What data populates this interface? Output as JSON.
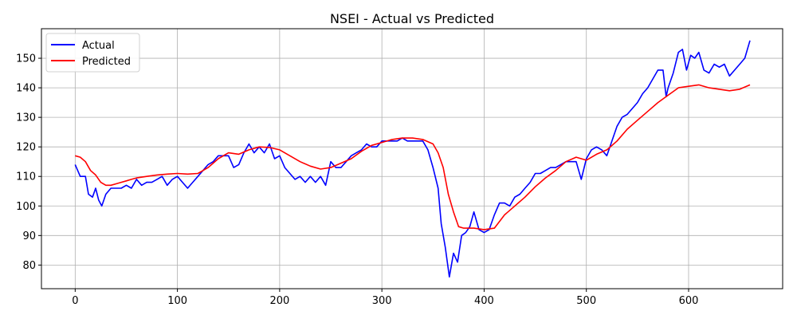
{
  "chart_data": {
    "type": "line",
    "title": "NSEI - Actual vs Predicted",
    "xlabel": "",
    "ylabel": "",
    "xlim": [
      -33,
      692
    ],
    "ylim": [
      72,
      160
    ],
    "x_ticks": [
      0,
      100,
      200,
      300,
      400,
      500,
      600
    ],
    "y_ticks": [
      80,
      90,
      100,
      110,
      120,
      130,
      140,
      150
    ],
    "grid": true,
    "legend_position": "top-left",
    "series": [
      {
        "name": "Actual",
        "color": "#0000ff",
        "points": [
          [
            0,
            114
          ],
          [
            5,
            110
          ],
          [
            10,
            110
          ],
          [
            13,
            104
          ],
          [
            17,
            103
          ],
          [
            20,
            106
          ],
          [
            23,
            102
          ],
          [
            26,
            100
          ],
          [
            30,
            104
          ],
          [
            35,
            106
          ],
          [
            40,
            106
          ],
          [
            45,
            106
          ],
          [
            50,
            107
          ],
          [
            55,
            106
          ],
          [
            60,
            109
          ],
          [
            65,
            107
          ],
          [
            70,
            108
          ],
          [
            75,
            108
          ],
          [
            80,
            109
          ],
          [
            85,
            110
          ],
          [
            90,
            107
          ],
          [
            95,
            109
          ],
          [
            100,
            110
          ],
          [
            105,
            108
          ],
          [
            110,
            106
          ],
          [
            115,
            108
          ],
          [
            120,
            110
          ],
          [
            125,
            112
          ],
          [
            130,
            114
          ],
          [
            135,
            115
          ],
          [
            140,
            117
          ],
          [
            145,
            117
          ],
          [
            150,
            117
          ],
          [
            155,
            113
          ],
          [
            160,
            114
          ],
          [
            165,
            118
          ],
          [
            170,
            121
          ],
          [
            175,
            118
          ],
          [
            180,
            120
          ],
          [
            185,
            118
          ],
          [
            190,
            121
          ],
          [
            195,
            116
          ],
          [
            200,
            117
          ],
          [
            205,
            113
          ],
          [
            210,
            111
          ],
          [
            215,
            109
          ],
          [
            220,
            110
          ],
          [
            225,
            108
          ],
          [
            230,
            110
          ],
          [
            235,
            108
          ],
          [
            240,
            110
          ],
          [
            245,
            107
          ],
          [
            250,
            115
          ],
          [
            255,
            113
          ],
          [
            260,
            113
          ],
          [
            265,
            115
          ],
          [
            270,
            117
          ],
          [
            275,
            118
          ],
          [
            280,
            119
          ],
          [
            285,
            121
          ],
          [
            290,
            120
          ],
          [
            295,
            120
          ],
          [
            300,
            122
          ],
          [
            305,
            122
          ],
          [
            310,
            122
          ],
          [
            315,
            122
          ],
          [
            320,
            123
          ],
          [
            325,
            122
          ],
          [
            330,
            122
          ],
          [
            335,
            122
          ],
          [
            340,
            122
          ],
          [
            345,
            119
          ],
          [
            350,
            113
          ],
          [
            355,
            106
          ],
          [
            358,
            94
          ],
          [
            362,
            86
          ],
          [
            366,
            76
          ],
          [
            370,
            84
          ],
          [
            374,
            81
          ],
          [
            378,
            90
          ],
          [
            382,
            91
          ],
          [
            386,
            93
          ],
          [
            390,
            98
          ],
          [
            395,
            92
          ],
          [
            400,
            91
          ],
          [
            405,
            92
          ],
          [
            410,
            97
          ],
          [
            415,
            101
          ],
          [
            420,
            101
          ],
          [
            425,
            100
          ],
          [
            430,
            103
          ],
          [
            435,
            104
          ],
          [
            440,
            106
          ],
          [
            445,
            108
          ],
          [
            450,
            111
          ],
          [
            455,
            111
          ],
          [
            460,
            112
          ],
          [
            465,
            113
          ],
          [
            470,
            113
          ],
          [
            475,
            114
          ],
          [
            480,
            115
          ],
          [
            485,
            115
          ],
          [
            490,
            115
          ],
          [
            495,
            109
          ],
          [
            500,
            116
          ],
          [
            505,
            119
          ],
          [
            510,
            120
          ],
          [
            515,
            119
          ],
          [
            520,
            117
          ],
          [
            525,
            122
          ],
          [
            530,
            127
          ],
          [
            535,
            130
          ],
          [
            540,
            131
          ],
          [
            545,
            133
          ],
          [
            550,
            135
          ],
          [
            555,
            138
          ],
          [
            560,
            140
          ],
          [
            565,
            143
          ],
          [
            570,
            146
          ],
          [
            575,
            146
          ],
          [
            578,
            137
          ],
          [
            580,
            140
          ],
          [
            585,
            145
          ],
          [
            590,
            152
          ],
          [
            594,
            153
          ],
          [
            598,
            146
          ],
          [
            602,
            151
          ],
          [
            606,
            150
          ],
          [
            610,
            152
          ],
          [
            615,
            146
          ],
          [
            620,
            145
          ],
          [
            625,
            148
          ],
          [
            630,
            147
          ],
          [
            635,
            148
          ],
          [
            640,
            144
          ],
          [
            645,
            146
          ],
          [
            650,
            148
          ],
          [
            655,
            150
          ],
          [
            660,
            156
          ]
        ]
      },
      {
        "name": "Predicted",
        "color": "#ff0000",
        "points": [
          [
            0,
            117
          ],
          [
            5,
            116.5
          ],
          [
            10,
            115
          ],
          [
            15,
            112
          ],
          [
            20,
            110.5
          ],
          [
            25,
            108
          ],
          [
            30,
            107
          ],
          [
            35,
            107
          ],
          [
            40,
            107.5
          ],
          [
            45,
            108
          ],
          [
            50,
            108.5
          ],
          [
            55,
            109
          ],
          [
            60,
            109.5
          ],
          [
            70,
            110
          ],
          [
            80,
            110.5
          ],
          [
            90,
            110.8
          ],
          [
            100,
            111
          ],
          [
            110,
            110.8
          ],
          [
            120,
            111
          ],
          [
            130,
            113
          ],
          [
            140,
            116
          ],
          [
            150,
            118
          ],
          [
            160,
            117.5
          ],
          [
            170,
            119
          ],
          [
            180,
            120
          ],
          [
            190,
            119.8
          ],
          [
            200,
            119
          ],
          [
            210,
            117
          ],
          [
            220,
            115
          ],
          [
            230,
            113.5
          ],
          [
            240,
            112.5
          ],
          [
            250,
            113
          ],
          [
            260,
            114.5
          ],
          [
            270,
            116
          ],
          [
            280,
            118.5
          ],
          [
            290,
            120.5
          ],
          [
            300,
            121.5
          ],
          [
            310,
            122.5
          ],
          [
            320,
            123
          ],
          [
            330,
            123
          ],
          [
            340,
            122.5
          ],
          [
            350,
            121
          ],
          [
            355,
            118
          ],
          [
            360,
            113
          ],
          [
            365,
            104
          ],
          [
            370,
            98
          ],
          [
            375,
            93
          ],
          [
            380,
            92.5
          ],
          [
            390,
            92.5
          ],
          [
            400,
            92
          ],
          [
            410,
            92.5
          ],
          [
            420,
            97
          ],
          [
            430,
            100
          ],
          [
            440,
            103
          ],
          [
            450,
            106.5
          ],
          [
            460,
            109.5
          ],
          [
            470,
            112
          ],
          [
            480,
            115
          ],
          [
            490,
            116.5
          ],
          [
            500,
            115.5
          ],
          [
            510,
            117.5
          ],
          [
            520,
            119
          ],
          [
            530,
            122
          ],
          [
            540,
            126
          ],
          [
            550,
            129
          ],
          [
            560,
            132
          ],
          [
            570,
            135
          ],
          [
            580,
            137.5
          ],
          [
            590,
            140
          ],
          [
            600,
            140.5
          ],
          [
            610,
            141
          ],
          [
            620,
            140
          ],
          [
            630,
            139.5
          ],
          [
            640,
            139
          ],
          [
            650,
            139.5
          ],
          [
            660,
            141
          ]
        ]
      }
    ]
  }
}
